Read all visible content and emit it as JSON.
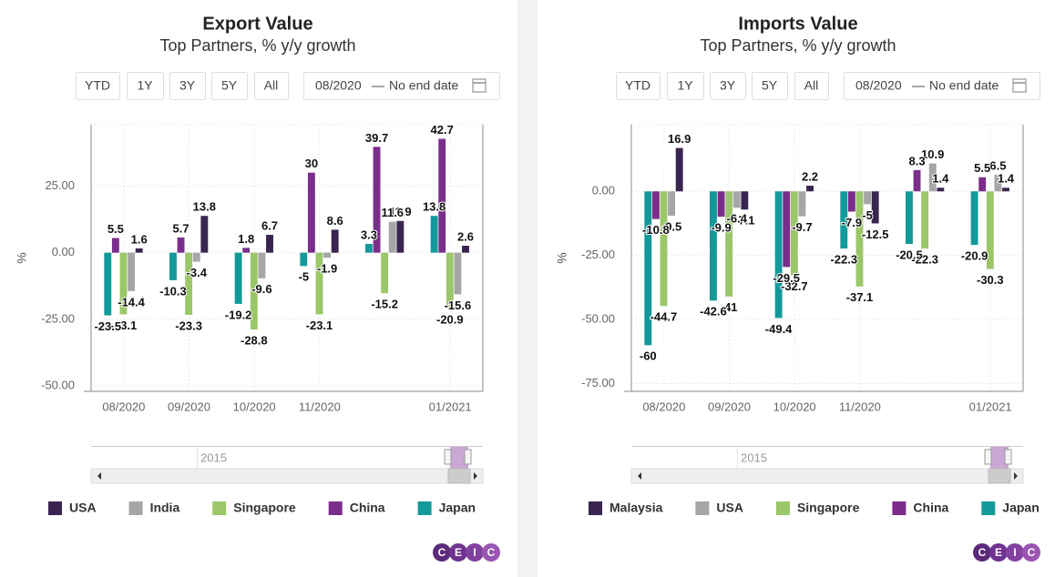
{
  "chart_data": [
    {
      "type": "bar",
      "title": "Export Value",
      "subtitle": "Top Partners, % y/y growth",
      "y_label": "%",
      "range_buttons": [
        "YTD",
        "1Y",
        "3Y",
        "5Y",
        "All"
      ],
      "date_from": "08/2020",
      "date_separator": "—",
      "date_to": "No end date",
      "navigator_label": "2015",
      "categories": [
        "08/2020",
        "09/2020",
        "10/2020",
        "11/2020",
        null,
        "01/2021"
      ],
      "series": [
        {
          "name": "USA",
          "color": "#3a2450",
          "values": [
            1.6,
            13.8,
            6.7,
            8.6,
            11.9,
            2.6
          ]
        },
        {
          "name": "India",
          "color": "#a6a6a6",
          "values": [
            -14.4,
            -3.4,
            -9.6,
            -1.9,
            11.6,
            -15.6
          ]
        },
        {
          "name": "Singapore",
          "color": "#9cc66a",
          "values": [
            -23.1,
            -23.3,
            -28.8,
            -23.1,
            -15.2,
            -20.9
          ]
        },
        {
          "name": "China",
          "color": "#7b2d8c",
          "values": [
            5.5,
            5.7,
            1.8,
            30.0,
            39.7,
            42.7
          ]
        },
        {
          "name": "Japan",
          "color": "#13999a",
          "values": [
            -23.5,
            -10.3,
            -19.2,
            -5.0,
            3.3,
            13.8
          ]
        }
      ],
      "ylim": [
        -52,
        48
      ],
      "yticks": [
        {
          "value": -50,
          "label": "-50.00"
        },
        {
          "value": -25,
          "label": "-25.00"
        },
        {
          "value": 0,
          "label": "0.00"
        },
        {
          "value": 25,
          "label": "25.00"
        }
      ],
      "grid": true,
      "legend": "bottom"
    },
    {
      "type": "bar",
      "title": "Imports Value",
      "subtitle": "Top Partners, % y/y growth",
      "y_label": "%",
      "range_buttons": [
        "YTD",
        "1Y",
        "3Y",
        "5Y",
        "All"
      ],
      "date_from": "08/2020",
      "date_separator": "—",
      "date_to": "No end date",
      "navigator_label": "2015",
      "categories": [
        "08/2020",
        "09/2020",
        "10/2020",
        "11/2020",
        null,
        "01/2021"
      ],
      "series": [
        {
          "name": "Malaysia",
          "color": "#3a2450",
          "values": [
            16.9,
            -7.1,
            2.2,
            -12.5,
            1.4,
            1.4
          ]
        },
        {
          "name": "USA",
          "color": "#a6a6a6",
          "values": [
            -9.5,
            -6.4,
            -9.7,
            -5.0,
            10.9,
            6.5
          ]
        },
        {
          "name": "Singapore",
          "color": "#9cc66a",
          "values": [
            -44.7,
            -41.0,
            -32.7,
            -37.1,
            -22.3,
            -30.3
          ]
        },
        {
          "name": "China",
          "color": "#7b2d8c",
          "values": [
            -10.8,
            -9.9,
            -29.5,
            -7.9,
            8.3,
            5.5
          ]
        },
        {
          "name": "Japan",
          "color": "#13999a",
          "values": [
            -60.0,
            -42.6,
            -49.4,
            -22.3,
            -20.5,
            -20.9
          ]
        }
      ],
      "ylim": [
        -78,
        26
      ],
      "yticks": [
        {
          "value": -75,
          "label": "-75.00"
        },
        {
          "value": -50,
          "label": "-50.00"
        },
        {
          "value": -25,
          "label": "-25.00"
        },
        {
          "value": 0,
          "label": "0.00"
        }
      ],
      "grid": true,
      "legend": "bottom"
    }
  ],
  "logo": "CEIC"
}
